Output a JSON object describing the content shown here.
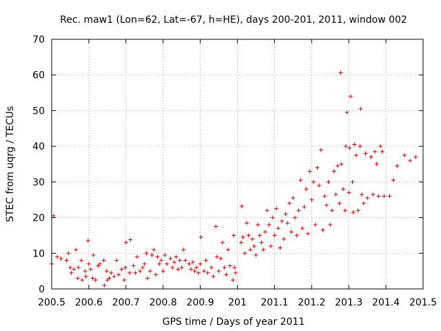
{
  "chart_data": {
    "type": "scatter",
    "title": "Rec. maw1 (Lon=62, Lat=-67, h=HE), days 200-201, 2011, window 002",
    "xlabel": "GPS time / Days of year 2011",
    "ylabel": "STEC from uqrg / TECUs",
    "xlim": [
      200.5,
      201.5
    ],
    "ylim": [
      0,
      70
    ],
    "xticks": [
      "200.5",
      "200.6",
      "200.7",
      "200.8",
      "200.9",
      "201",
      "201.1",
      "201.2",
      "201.3",
      "201.4",
      "201.5"
    ],
    "yticks": [
      "0",
      "10",
      "20",
      "30",
      "40",
      "50",
      "60",
      "70"
    ],
    "grid": true,
    "marker": "+",
    "color": "#cc0000",
    "series": [
      {
        "name": "STEC",
        "points": [
          [
            200.5,
            7.0
          ],
          [
            200.505,
            20.5
          ],
          [
            200.515,
            9.0
          ],
          [
            200.525,
            8.5
          ],
          [
            200.54,
            8.0
          ],
          [
            200.545,
            10.0
          ],
          [
            200.55,
            6.0
          ],
          [
            200.553,
            4.5
          ],
          [
            200.56,
            5.5
          ],
          [
            200.565,
            11.0
          ],
          [
            200.57,
            3.0
          ],
          [
            200.572,
            6.0
          ],
          [
            200.58,
            8.0
          ],
          [
            200.582,
            2.5
          ],
          [
            200.59,
            5.0
          ],
          [
            200.592,
            3.5
          ],
          [
            200.598,
            13.5
          ],
          [
            200.6,
            7.0
          ],
          [
            200.605,
            5.5
          ],
          [
            200.61,
            3.0
          ],
          [
            200.612,
            9.5
          ],
          [
            200.618,
            2.5
          ],
          [
            200.625,
            6.5
          ],
          [
            200.63,
            7.0
          ],
          [
            200.64,
            8.0
          ],
          [
            200.642,
            1.0
          ],
          [
            200.648,
            5.0
          ],
          [
            200.65,
            2.5
          ],
          [
            200.655,
            3.0
          ],
          [
            200.66,
            4.5
          ],
          [
            200.668,
            3.5
          ],
          [
            200.675,
            8.0
          ],
          [
            200.68,
            4.0
          ],
          [
            200.688,
            5.5
          ],
          [
            200.695,
            2.5
          ],
          [
            200.698,
            6.0
          ],
          [
            200.7,
            13.0
          ],
          [
            200.71,
            4.5
          ],
          [
            200.712,
            13.8
          ],
          [
            200.72,
            6.5
          ],
          [
            200.725,
            4.5
          ],
          [
            200.73,
            9.0
          ],
          [
            200.738,
            5.0
          ],
          [
            200.745,
            6.0
          ],
          [
            200.75,
            7.0
          ],
          [
            200.755,
            10.0
          ],
          [
            200.758,
            3.0
          ],
          [
            200.765,
            5.0
          ],
          [
            200.77,
            9.5
          ],
          [
            200.775,
            11.0
          ],
          [
            200.78,
            4.0
          ],
          [
            200.785,
            9.0
          ],
          [
            200.79,
            7.0
          ],
          [
            200.795,
            8.0
          ],
          [
            200.8,
            5.0
          ],
          [
            200.805,
            9.5
          ],
          [
            200.81,
            7.0
          ],
          [
            200.82,
            8.5
          ],
          [
            200.825,
            6.0
          ],
          [
            200.83,
            7.5
          ],
          [
            200.835,
            9.0
          ],
          [
            200.84,
            5.5
          ],
          [
            200.845,
            8.0
          ],
          [
            200.85,
            6.0
          ],
          [
            200.855,
            11.0
          ],
          [
            200.86,
            8.0
          ],
          [
            200.87,
            7.0
          ],
          [
            200.875,
            5.5
          ],
          [
            200.88,
            7.5
          ],
          [
            200.885,
            5.0
          ],
          [
            200.89,
            6.0
          ],
          [
            200.895,
            4.5
          ],
          [
            200.9,
            7.0
          ],
          [
            200.902,
            14.5
          ],
          [
            200.91,
            5.0
          ],
          [
            200.915,
            8.0
          ],
          [
            200.92,
            4.5
          ],
          [
            200.93,
            6.0
          ],
          [
            200.935,
            3.5
          ],
          [
            200.942,
            17.5
          ],
          [
            200.945,
            9.0
          ],
          [
            200.95,
            5.0
          ],
          [
            200.955,
            8.5
          ],
          [
            200.96,
            13.0
          ],
          [
            200.965,
            6.0
          ],
          [
            200.97,
            4.0
          ],
          [
            200.975,
            11.0
          ],
          [
            200.98,
            6.5
          ],
          [
            200.988,
            2.5
          ],
          [
            200.99,
            15.0
          ],
          [
            200.992,
            6.0
          ],
          [
            200.995,
            4.5
          ],
          [
            201.01,
            13.0
          ],
          [
            201.012,
            23.2
          ],
          [
            201.015,
            14.5
          ],
          [
            201.02,
            10.0
          ],
          [
            201.025,
            18.5
          ],
          [
            201.03,
            15.0
          ],
          [
            201.035,
            11.0
          ],
          [
            201.04,
            14.0
          ],
          [
            201.045,
            12.0
          ],
          [
            201.05,
            9.5
          ],
          [
            201.055,
            18.0
          ],
          [
            201.06,
            15.0
          ],
          [
            201.065,
            13.0
          ],
          [
            201.07,
            11.0
          ],
          [
            201.075,
            16.0
          ],
          [
            201.08,
            22.0
          ],
          [
            201.085,
            18.0
          ],
          [
            201.09,
            12.0
          ],
          [
            201.095,
            20.0
          ],
          [
            201.1,
            15.0
          ],
          [
            201.105,
            22.5
          ],
          [
            201.11,
            17.0
          ],
          [
            201.115,
            11.5
          ],
          [
            201.12,
            19.0
          ],
          [
            201.125,
            14.0
          ],
          [
            201.13,
            21.0
          ],
          [
            201.135,
            18.5
          ],
          [
            201.14,
            24.0
          ],
          [
            201.145,
            16.0
          ],
          [
            201.15,
            25.5
          ],
          [
            201.155,
            20.0
          ],
          [
            201.16,
            15.0
          ],
          [
            201.165,
            22.0
          ],
          [
            201.17,
            30.5
          ],
          [
            201.175,
            17.0
          ],
          [
            201.18,
            23.0
          ],
          [
            201.185,
            28.0
          ],
          [
            201.19,
            15.5
          ],
          [
            201.195,
            33.0
          ],
          [
            201.2,
            25.0
          ],
          [
            201.205,
            30.0
          ],
          [
            201.21,
            18.0
          ],
          [
            201.215,
            34.0
          ],
          [
            201.22,
            29.0
          ],
          [
            201.225,
            39.0
          ],
          [
            201.23,
            16.5
          ],
          [
            201.235,
            26.0
          ],
          [
            201.24,
            23.5
          ],
          [
            201.245,
            30.0
          ],
          [
            201.25,
            18.0
          ],
          [
            201.255,
            22.0
          ],
          [
            201.26,
            33.0
          ],
          [
            201.265,
            26.5
          ],
          [
            201.27,
            34.5
          ],
          [
            201.275,
            24.0
          ],
          [
            201.278,
            60.6
          ],
          [
            201.28,
            35.0
          ],
          [
            201.285,
            28.0
          ],
          [
            201.29,
            22.0
          ],
          [
            201.292,
            40.0
          ],
          [
            201.295,
            49.5
          ],
          [
            201.3,
            27.0
          ],
          [
            201.302,
            39.5
          ],
          [
            201.305,
            54.0
          ],
          [
            201.31,
            30.0
          ],
          [
            201.312,
            21.5
          ],
          [
            201.315,
            40.5
          ],
          [
            201.32,
            37.5
          ],
          [
            201.325,
            22.0
          ],
          [
            201.33,
            40.0
          ],
          [
            201.332,
            50.5
          ],
          [
            201.335,
            26.5
          ],
          [
            201.34,
            24.0
          ],
          [
            201.345,
            38.0
          ],
          [
            201.35,
            25.5
          ],
          [
            201.36,
            37.0
          ],
          [
            201.365,
            26.5
          ],
          [
            201.37,
            38.5
          ],
          [
            201.375,
            35.0
          ],
          [
            201.38,
            26.0
          ],
          [
            201.385,
            40.0
          ],
          [
            201.39,
            38.5
          ],
          [
            201.395,
            26.0
          ],
          [
            201.41,
            26.0
          ],
          [
            201.42,
            30.5
          ],
          [
            201.43,
            34.5
          ],
          [
            201.45,
            37.5
          ],
          [
            201.465,
            36.0
          ],
          [
            201.48,
            37.0
          ]
        ]
      }
    ]
  }
}
